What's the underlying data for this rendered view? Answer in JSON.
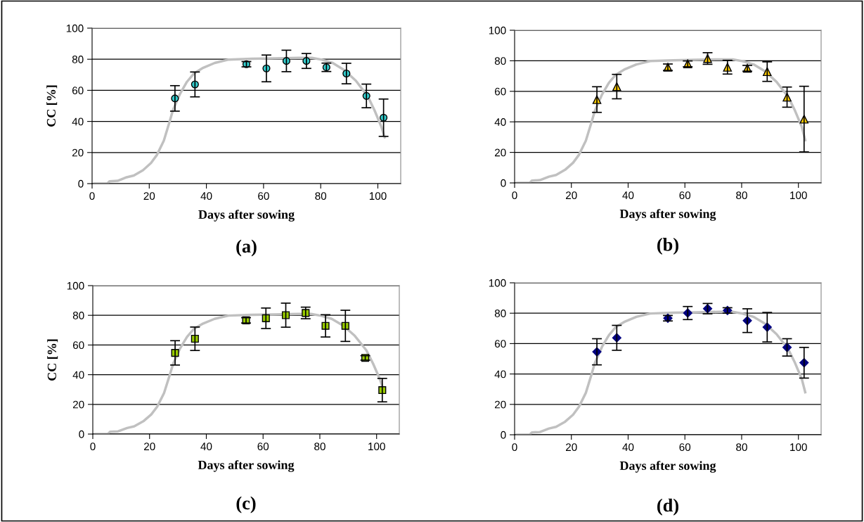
{
  "chart_data": [
    {
      "type": "scatter",
      "title": "(a)",
      "xlabel": "Days after sowing",
      "ylabel": "CC [%]",
      "xlim": [
        0,
        108
      ],
      "xticks": [
        0,
        20,
        40,
        60,
        80,
        100
      ],
      "ylim": [
        0,
        100
      ],
      "yticks": [
        0,
        20,
        40,
        60,
        80,
        100
      ],
      "grid": "y",
      "series": [
        {
          "type": "line",
          "color": "#c0c0c0",
          "marker": "none",
          "x": [
            0.8,
            5.3,
            6.1,
            8.9,
            12.1,
            14.6,
            17.8,
            20.6,
            22.7,
            25.1,
            27.1,
            28.3,
            30.8,
            33.2,
            35.6,
            38.9,
            42.9,
            47.8,
            55.9,
            64,
            72.1,
            76.9,
            80.2,
            84.2,
            88.3,
            92.3,
            96.4,
            98.8,
            101.2,
            102.4
          ],
          "values": [
            0,
            0,
            1.5,
            1.8,
            4.1,
            5.2,
            8.6,
            13.2,
            18.5,
            27.6,
            39.7,
            47.3,
            57.9,
            65.5,
            70.8,
            74.5,
            77.6,
            79.8,
            80.3,
            80.6,
            80.9,
            80.9,
            79.8,
            77.6,
            73,
            66.2,
            56.4,
            47.3,
            36.7,
            29.8
          ]
        },
        {
          "color": "#33cccc",
          "marker": "circle",
          "x": [
            29,
            36,
            54,
            61,
            68,
            75,
            82,
            89,
            96,
            102
          ],
          "values": [
            54.8,
            63.8,
            76.8,
            74.1,
            78.9,
            78.9,
            74.8,
            70.8,
            56.4,
            42.4
          ],
          "errors": [
            8.2,
            8,
            1.7,
            8.6,
            6.9,
            4.8,
            2.7,
            6.6,
            7.6,
            12
          ]
        }
      ]
    },
    {
      "type": "scatter",
      "title": "(b)",
      "xlabel": "Days after sowing",
      "xlim": [
        0,
        108
      ],
      "xticks": [
        0,
        20,
        40,
        60,
        80,
        100
      ],
      "ylim": [
        0,
        100
      ],
      "yticks": [
        0,
        20,
        40,
        60,
        80,
        100
      ],
      "grid": "y",
      "series": [
        {
          "type": "line",
          "color": "#c0c0c0",
          "marker": "none",
          "x": [
            0.8,
            5.3,
            6.1,
            8.9,
            12.1,
            14.6,
            17.8,
            20.6,
            22.7,
            25.1,
            27.1,
            28.3,
            30.8,
            33.2,
            35.6,
            38.9,
            42.9,
            47.8,
            55.9,
            64,
            72.1,
            76.9,
            80.2,
            84.2,
            88.3,
            92.3,
            96.4,
            98.8,
            101.2,
            102.4
          ],
          "values": [
            0,
            0,
            1.5,
            1.8,
            4.1,
            5.2,
            8.6,
            13.2,
            18.5,
            27.6,
            39.7,
            47.3,
            57.9,
            65.5,
            70.8,
            74.5,
            77.6,
            79.8,
            80.3,
            80.6,
            80.9,
            80.9,
            79.8,
            77.6,
            73,
            66.2,
            56.4,
            47.3,
            36.7,
            28
          ]
        },
        {
          "color": "#ffcc00",
          "marker": "triangle",
          "x": [
            29,
            36,
            54,
            61,
            68,
            75,
            82,
            89,
            96,
            102
          ],
          "values": [
            54.6,
            63.1,
            75.8,
            78,
            81.5,
            75.8,
            75.1,
            72.9,
            56.2,
            41.8
          ],
          "errors": [
            8.4,
            8,
            2.1,
            1.9,
            3.8,
            4.5,
            1.9,
            6.4,
            6.6,
            21.5
          ]
        }
      ]
    },
    {
      "type": "scatter",
      "title": "(c)",
      "xlabel": "Days after sowing",
      "ylabel": "CC [%]",
      "xlim": [
        0,
        108
      ],
      "xticks": [
        0,
        20,
        40,
        60,
        80,
        100
      ],
      "ylim": [
        0,
        100
      ],
      "yticks": [
        0,
        20,
        40,
        60,
        80,
        100
      ],
      "grid": "y",
      "series": [
        {
          "type": "line",
          "color": "#c0c0c0",
          "marker": "none",
          "x": [
            0.8,
            5.3,
            6.1,
            8.9,
            12.1,
            14.6,
            17.8,
            20.6,
            22.7,
            25.1,
            27.1,
            28.3,
            30.8,
            33.2,
            35.6,
            38.9,
            42.9,
            47.8,
            55.9,
            64,
            72.1,
            76.9,
            80.2,
            84.2,
            88.3,
            92.3,
            96.4,
            98.8,
            101.2,
            102.4
          ],
          "values": [
            0,
            0,
            1.5,
            1.8,
            4.1,
            5.2,
            8.6,
            13.2,
            18.5,
            27.6,
            39.7,
            47.3,
            57.9,
            65.5,
            70.8,
            74.5,
            77.6,
            79.8,
            80.3,
            80.6,
            80.9,
            80.9,
            79.8,
            77.6,
            73,
            66.2,
            56.4,
            47.3,
            36.7,
            29.8
          ]
        },
        {
          "color": "#99cc00",
          "marker": "square",
          "x": [
            29,
            36,
            54,
            61,
            68,
            75,
            82,
            89,
            96,
            102
          ],
          "values": [
            54.7,
            64.2,
            76.6,
            78,
            80.1,
            81.6,
            72.9,
            72.9,
            51.3,
            29.6
          ],
          "errors": [
            8.2,
            7.9,
            1.8,
            6.9,
            8.1,
            3.9,
            7.5,
            10.5,
            1.5,
            7.9
          ]
        }
      ]
    },
    {
      "type": "scatter",
      "title": "(d)",
      "xlabel": "Days after sowing",
      "xlim": [
        0,
        108
      ],
      "xticks": [
        0,
        20,
        40,
        60,
        80,
        100
      ],
      "ylim": [
        0,
        100
      ],
      "yticks": [
        0,
        20,
        40,
        60,
        80,
        100
      ],
      "grid": "y",
      "series": [
        {
          "type": "line",
          "color": "#c0c0c0",
          "marker": "none",
          "x": [
            0.8,
            5.3,
            6.1,
            8.9,
            12.1,
            14.6,
            17.8,
            20.6,
            22.7,
            25.1,
            27.1,
            28.3,
            30.8,
            33.2,
            35.6,
            38.9,
            42.9,
            47.8,
            55.9,
            64,
            72.1,
            76.9,
            80.2,
            84.2,
            88.3,
            92.3,
            96.4,
            98.8,
            101.2,
            102.4
          ],
          "values": [
            0,
            0,
            1.5,
            1.8,
            4.1,
            5.2,
            8.6,
            13.2,
            18.5,
            27.6,
            39.7,
            47.3,
            57.9,
            65.5,
            70.8,
            74.5,
            77.6,
            79.8,
            80.3,
            80.6,
            80.9,
            80.9,
            79.8,
            77.6,
            73,
            66.2,
            56.4,
            47.3,
            36.7,
            28
          ]
        },
        {
          "color": "#000080",
          "marker": "diamond",
          "x": [
            29,
            36,
            54,
            61,
            68,
            75,
            82,
            89,
            96,
            102
          ],
          "values": [
            54.6,
            63.8,
            76.7,
            80.1,
            83,
            81.8,
            75.1,
            70.8,
            57.5,
            47.4
          ],
          "errors": [
            8.6,
            8.2,
            1.8,
            4.3,
            3.4,
            1.8,
            7.8,
            9.7,
            5.7,
            10.1
          ]
        }
      ]
    }
  ]
}
